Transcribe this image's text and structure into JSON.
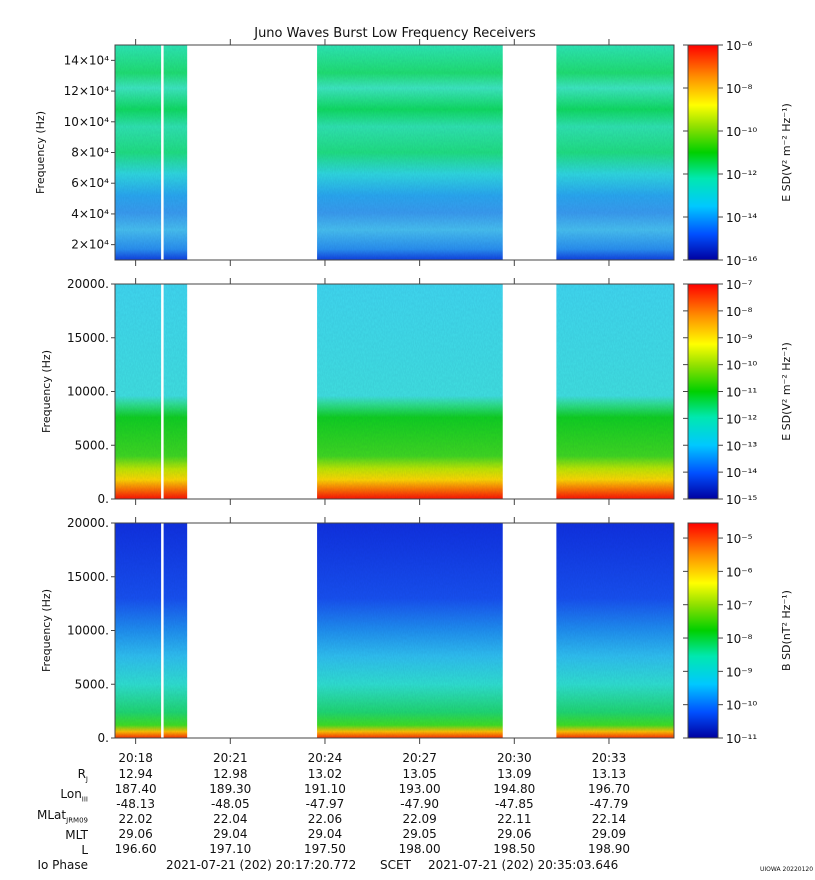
{
  "chart_data": [
    {
      "type": "heatmap",
      "title": "Juno Waves Burst Low Frequency Receivers",
      "ylabel": "Frequency (Hz)",
      "y_tick_labels": [
        "2×10⁴",
        "4×10⁴",
        "6×10⁴",
        "8×10⁴",
        "10×10⁴",
        "12×10⁴",
        "14×10⁴"
      ],
      "y_ticks": [
        20000,
        40000,
        60000,
        80000,
        100000,
        120000,
        140000
      ],
      "ylim": [
        10000,
        150000
      ],
      "colorbar_label": "E SD(V² m⁻² Hz⁻¹)",
      "colorbar_tick_labels": [
        "10⁻¹⁶",
        "10⁻¹⁴",
        "10⁻¹²",
        "10⁻¹⁰",
        "10⁻⁸",
        "10⁻⁶"
      ],
      "colorbar_range": [
        -16,
        -6
      ]
    },
    {
      "type": "heatmap",
      "ylabel": "Frequency (Hz)",
      "y_tick_labels": [
        "0.",
        "5000.",
        "10000.",
        "15000.",
        "20000."
      ],
      "y_ticks": [
        0,
        5000,
        10000,
        15000,
        20000
      ],
      "ylim": [
        0,
        20000
      ],
      "colorbar_label": "E SD(V² m⁻² Hz⁻¹)",
      "colorbar_tick_labels": [
        "10⁻¹⁵",
        "10⁻¹⁴",
        "10⁻¹³",
        "10⁻¹²",
        "10⁻¹¹",
        "10⁻¹⁰",
        "10⁻⁹",
        "10⁻⁸",
        "10⁻⁷"
      ],
      "colorbar_range": [
        -15,
        -7
      ]
    },
    {
      "type": "heatmap",
      "ylabel": "Frequency (Hz)",
      "y_tick_labels": [
        "0.",
        "5000.",
        "10000.",
        "15000.",
        "20000."
      ],
      "y_ticks": [
        0,
        5000,
        10000,
        15000,
        20000
      ],
      "ylim": [
        0,
        20000
      ],
      "colorbar_label": "B SD(nT² Hz⁻¹)",
      "colorbar_tick_labels": [
        "10⁻¹¹",
        "10⁻¹⁰",
        "10⁻⁹",
        "10⁻⁸",
        "10⁻⁷",
        "10⁻⁶",
        "10⁻⁵"
      ],
      "colorbar_range": [
        -11,
        -4.5
      ]
    }
  ],
  "time_axis": {
    "tick_labels": [
      "20:18",
      "20:21",
      "20:24",
      "20:27",
      "20:30",
      "20:33"
    ],
    "data_gaps": [
      [
        "20:19:38",
        "20:23:45"
      ],
      [
        "20:29:38",
        "20:31:20"
      ]
    ],
    "narrow_gap": "20:17:21"
  },
  "ephemeris": {
    "labels": [
      "R",
      "Lon",
      "MLat",
      "MLT",
      "L",
      "Io Phase"
    ],
    "label_subs": [
      "J",
      "III",
      "JRM09",
      "",
      "",
      ""
    ],
    "columns": [
      [
        "12.94",
        "187.40",
        "-48.13",
        "22.02",
        "29.06",
        "196.60"
      ],
      [
        "12.98",
        "189.30",
        "-48.05",
        "22.04",
        "29.04",
        "197.10"
      ],
      [
        "13.02",
        "191.10",
        "-47.97",
        "22.06",
        "29.04",
        "197.50"
      ],
      [
        "13.05",
        "193.00",
        "-47.90",
        "22.09",
        "29.05",
        "198.00"
      ],
      [
        "13.09",
        "194.80",
        "-47.85",
        "22.11",
        "29.06",
        "198.50"
      ],
      [
        "13.13",
        "196.70",
        "-47.79",
        "22.14",
        "29.09",
        "198.90"
      ]
    ]
  },
  "footer": {
    "start": "2021-07-21 (202) 20:17:20.772",
    "scet": "SCET",
    "end": "2021-07-21 (202) 20:35:03.646"
  },
  "credit": "UIOWA 20220120"
}
